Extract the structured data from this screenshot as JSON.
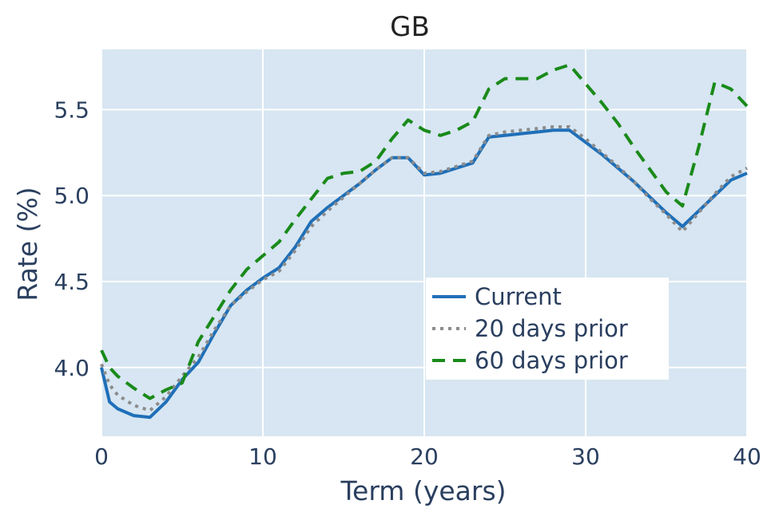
{
  "chart_data": {
    "type": "line",
    "title": "GB",
    "xlabel": "Term (years)",
    "ylabel": "Rate (%)",
    "xlim": [
      0,
      40
    ],
    "ylim": [
      3.6,
      5.85
    ],
    "xticks": [
      0,
      10,
      20,
      30,
      40
    ],
    "yticks": [
      4.0,
      4.5,
      5.0,
      5.5
    ],
    "xtick_labels": [
      "0",
      "10",
      "20",
      "30",
      "40"
    ],
    "ytick_labels": [
      "4.0",
      "4.5",
      "5.0",
      "5.5"
    ],
    "grid": true,
    "legend_position": "middle-right",
    "plot_bg": "#d7e6f2",
    "series": [
      {
        "name": "Current",
        "color": "#1f6fb8",
        "dash": "solid",
        "x": [
          0,
          0.5,
          1,
          2,
          3,
          4,
          5,
          6,
          7,
          8,
          9,
          10,
          11,
          12,
          13,
          14,
          15,
          16,
          17,
          18,
          19,
          20,
          21,
          22,
          23,
          24,
          25,
          26,
          27,
          28,
          29,
          30,
          31,
          32,
          33,
          34,
          35,
          36,
          37,
          38,
          39,
          40
        ],
        "y": [
          4.0,
          3.8,
          3.76,
          3.72,
          3.71,
          3.8,
          3.93,
          4.03,
          4.2,
          4.36,
          4.45,
          4.52,
          4.58,
          4.7,
          4.85,
          4.93,
          5.0,
          5.07,
          5.15,
          5.22,
          5.22,
          5.12,
          5.13,
          5.16,
          5.19,
          5.34,
          5.35,
          5.36,
          5.37,
          5.38,
          5.38,
          5.31,
          5.24,
          5.16,
          5.08,
          4.99,
          4.9,
          4.82,
          4.91,
          5.0,
          5.09,
          5.13
        ]
      },
      {
        "name": "20 days prior",
        "color": "#8c8c8c",
        "dash": "dot",
        "x": [
          0,
          0.5,
          1,
          2,
          3,
          4,
          5,
          6,
          7,
          8,
          9,
          10,
          11,
          12,
          13,
          14,
          15,
          16,
          17,
          18,
          19,
          20,
          21,
          22,
          23,
          24,
          25,
          26,
          27,
          28,
          29,
          30,
          31,
          32,
          33,
          34,
          35,
          36,
          37,
          38,
          39,
          40
        ],
        "y": [
          4.02,
          3.9,
          3.84,
          3.78,
          3.75,
          3.83,
          3.95,
          4.06,
          4.22,
          4.36,
          4.44,
          4.51,
          4.56,
          4.68,
          4.82,
          4.91,
          4.99,
          5.07,
          5.15,
          5.22,
          5.22,
          5.13,
          5.14,
          5.17,
          5.2,
          5.35,
          5.37,
          5.38,
          5.39,
          5.4,
          5.4,
          5.33,
          5.25,
          5.17,
          5.08,
          4.98,
          4.89,
          4.79,
          4.9,
          5.01,
          5.11,
          5.16
        ]
      },
      {
        "name": "60 days prior",
        "color": "#1a8a1a",
        "dash": "dash",
        "x": [
          0,
          0.5,
          1,
          2,
          3,
          4,
          5,
          6,
          7,
          8,
          9,
          10,
          11,
          12,
          13,
          14,
          15,
          16,
          17,
          18,
          19,
          20,
          21,
          22,
          23,
          24,
          25,
          26,
          27,
          28,
          29,
          30,
          31,
          32,
          33,
          34,
          35,
          36,
          37,
          38,
          39,
          40
        ],
        "y": [
          4.1,
          4.0,
          3.95,
          3.88,
          3.82,
          3.87,
          3.91,
          4.15,
          4.3,
          4.45,
          4.57,
          4.65,
          4.73,
          4.86,
          4.98,
          5.1,
          5.13,
          5.14,
          5.2,
          5.33,
          5.44,
          5.38,
          5.35,
          5.38,
          5.43,
          5.62,
          5.68,
          5.68,
          5.68,
          5.73,
          5.76,
          5.65,
          5.54,
          5.42,
          5.28,
          5.15,
          5.02,
          4.94,
          5.28,
          5.66,
          5.62,
          5.52
        ]
      }
    ]
  }
}
